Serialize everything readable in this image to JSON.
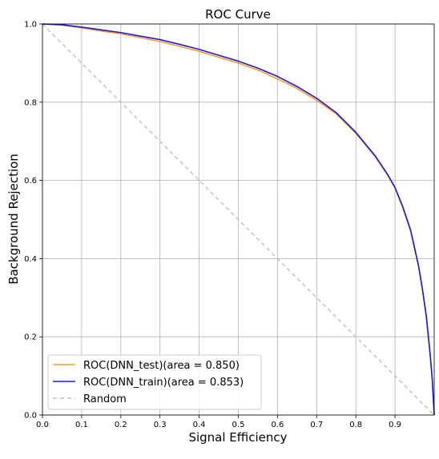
{
  "chart_data": {
    "type": "line",
    "title": "ROC Curve",
    "xlabel": "Signal Efficiency",
    "ylabel": "Background Rejection",
    "xlim": [
      0,
      1
    ],
    "ylim": [
      0,
      1
    ],
    "xticks": [
      "0.0",
      "0.1",
      "0.2",
      "0.3",
      "0.4",
      "0.5",
      "0.6",
      "0.7",
      "0.8",
      "0.9"
    ],
    "yticks": [
      "0.0",
      "0.2",
      "0.4",
      "0.6",
      "0.8",
      "1.0"
    ],
    "grid": true,
    "legend_position": "lower-left",
    "series": [
      {
        "name": "ROC(DNN_test)(area = 0.850)",
        "color": "#ff9a2e",
        "style": "solid",
        "x": [
          0,
          0.05,
          0.1,
          0.15,
          0.2,
          0.25,
          0.3,
          0.35,
          0.4,
          0.45,
          0.5,
          0.55,
          0.6,
          0.65,
          0.7,
          0.75,
          0.8,
          0.85,
          0.88,
          0.9,
          0.92,
          0.94,
          0.96,
          0.97,
          0.98,
          0.99,
          0.995,
          1.0
        ],
        "y": [
          1.0,
          0.997,
          0.99,
          0.982,
          0.975,
          0.965,
          0.955,
          0.943,
          0.93,
          0.915,
          0.9,
          0.882,
          0.86,
          0.835,
          0.805,
          0.77,
          0.72,
          0.66,
          0.615,
          0.58,
          0.53,
          0.47,
          0.38,
          0.32,
          0.25,
          0.15,
          0.09,
          0.0
        ]
      },
      {
        "name": "ROC(DNN_train)(area = 0.853)",
        "color": "#1a1adf",
        "style": "solid",
        "x": [
          0,
          0.05,
          0.1,
          0.15,
          0.2,
          0.25,
          0.3,
          0.35,
          0.4,
          0.45,
          0.5,
          0.55,
          0.6,
          0.65,
          0.7,
          0.75,
          0.8,
          0.85,
          0.88,
          0.9,
          0.92,
          0.94,
          0.96,
          0.97,
          0.98,
          0.99,
          0.995,
          1.0
        ],
        "y": [
          1.0,
          0.998,
          0.992,
          0.985,
          0.978,
          0.969,
          0.96,
          0.948,
          0.935,
          0.92,
          0.905,
          0.887,
          0.866,
          0.84,
          0.81,
          0.773,
          0.723,
          0.662,
          0.617,
          0.582,
          0.532,
          0.472,
          0.382,
          0.322,
          0.252,
          0.152,
          0.092,
          0.0
        ]
      },
      {
        "name": "Random",
        "color": "#c0c0c0",
        "style": "dashed",
        "x": [
          0,
          1
        ],
        "y": [
          1,
          0
        ]
      }
    ]
  }
}
